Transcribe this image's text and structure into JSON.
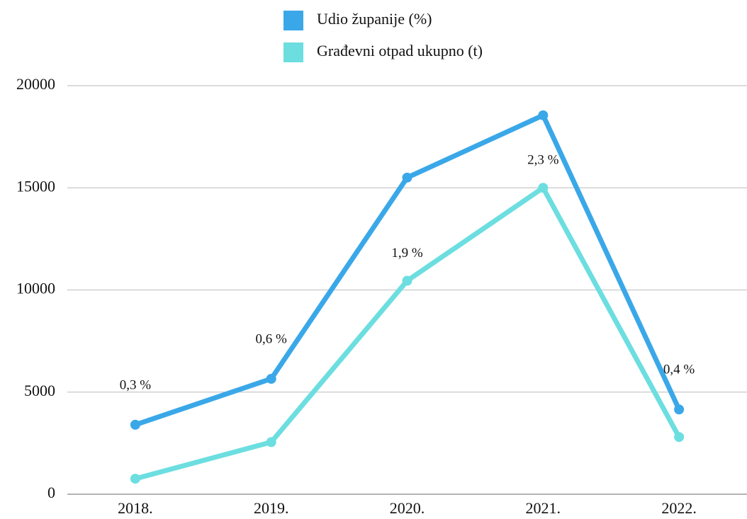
{
  "chart_data": {
    "type": "line",
    "categories": [
      "2018.",
      "2019.",
      "2020.",
      "2021.",
      "2022."
    ],
    "series": [
      {
        "name": "Udio županije (%)",
        "color": "#3aa8e8",
        "values": [
          3400,
          5650,
          15500,
          18550,
          4150
        ]
      },
      {
        "name": "Građevni otpad ukupno (t)",
        "color": "#6cdee0",
        "values": [
          760,
          2550,
          10450,
          15000,
          2800
        ]
      }
    ],
    "annotations": [
      "0,3 %",
      "0,6 %",
      "1,9 %",
      "2,3 %",
      "0,4 %"
    ],
    "ylim": [
      0,
      20000
    ],
    "yticks": [
      0,
      5000,
      10000,
      15000,
      20000
    ],
    "grid": true,
    "legend": "top"
  }
}
